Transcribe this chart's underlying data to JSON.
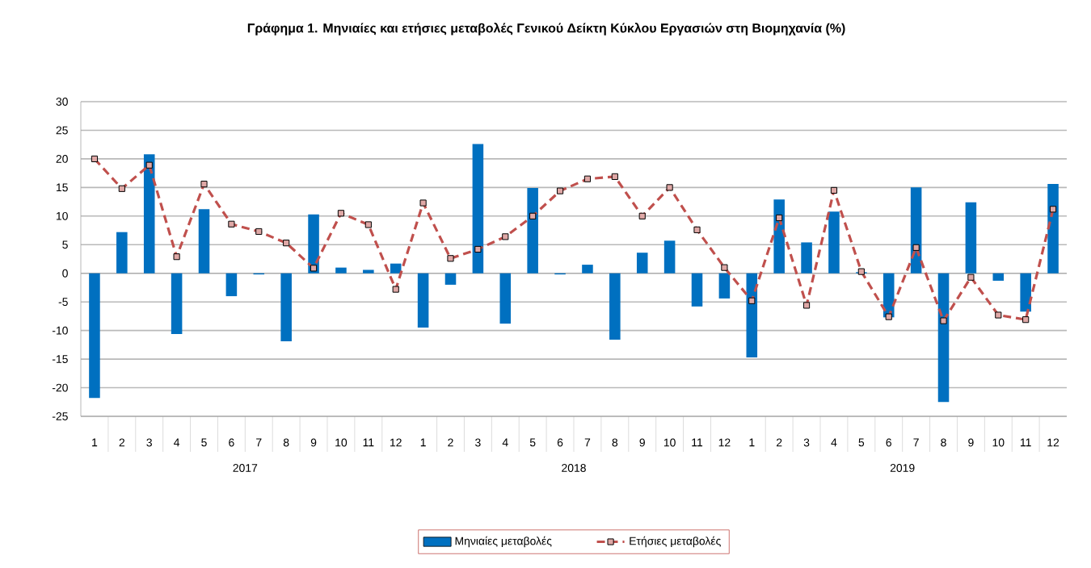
{
  "chart_data": {
    "type": "bar",
    "title": "Γράφημα 1. Μηνιαίες και ετήσιες μεταβολές  Γενικού Δείκτη Κύκλου Εργασιών στη Βιομηχανία (%)",
    "categories": [
      "1",
      "2",
      "3",
      "4",
      "5",
      "6",
      "7",
      "8",
      "9",
      "10",
      "11",
      "12",
      "1",
      "2",
      "3",
      "4",
      "5",
      "6",
      "7",
      "8",
      "9",
      "10",
      "11",
      "12",
      "1",
      "2",
      "3",
      "4",
      "5",
      "6",
      "7",
      "8",
      "9",
      "10",
      "11",
      "12"
    ],
    "annotations": [
      "2017",
      "2018",
      "2019"
    ],
    "series": [
      {
        "name": "Μηνιαίες μεταβολές",
        "color": "#0070c0",
        "values": [
          -21.8,
          7.2,
          20.8,
          -10.6,
          11.2,
          -4.0,
          -0.2,
          -11.9,
          10.3,
          1.0,
          0.6,
          1.7,
          -9.5,
          -2.0,
          22.6,
          -8.8,
          14.9,
          -0.2,
          1.5,
          -11.6,
          3.6,
          5.7,
          -5.8,
          -4.4,
          -14.7,
          12.9,
          5.4,
          10.8,
          0.2,
          -7.7,
          15.0,
          -22.5,
          12.4,
          -1.3,
          -6.7,
          15.6
        ]
      },
      {
        "name": "Ετήσιες μεταβολές",
        "type": "line",
        "color": "#c0504d",
        "marker": "square",
        "line_style": "dashed",
        "values": [
          20.0,
          14.8,
          18.9,
          2.9,
          15.6,
          8.6,
          7.3,
          5.3,
          0.9,
          10.5,
          8.5,
          -2.8,
          12.3,
          2.6,
          4.2,
          6.4,
          10.0,
          14.4,
          16.5,
          16.9,
          10.0,
          15.0,
          7.6,
          1.0,
          -4.8,
          9.7,
          -5.6,
          14.5,
          0.3,
          -7.6,
          4.5,
          -8.3,
          -0.7,
          -7.3,
          -8.1,
          11.2
        ]
      }
    ],
    "ylim": [
      -25,
      30
    ],
    "yticks": [
      -25,
      -20,
      -15,
      -10,
      -5,
      0,
      5,
      10,
      15,
      20,
      25,
      30
    ],
    "grid": "y",
    "legend": "bottom"
  }
}
